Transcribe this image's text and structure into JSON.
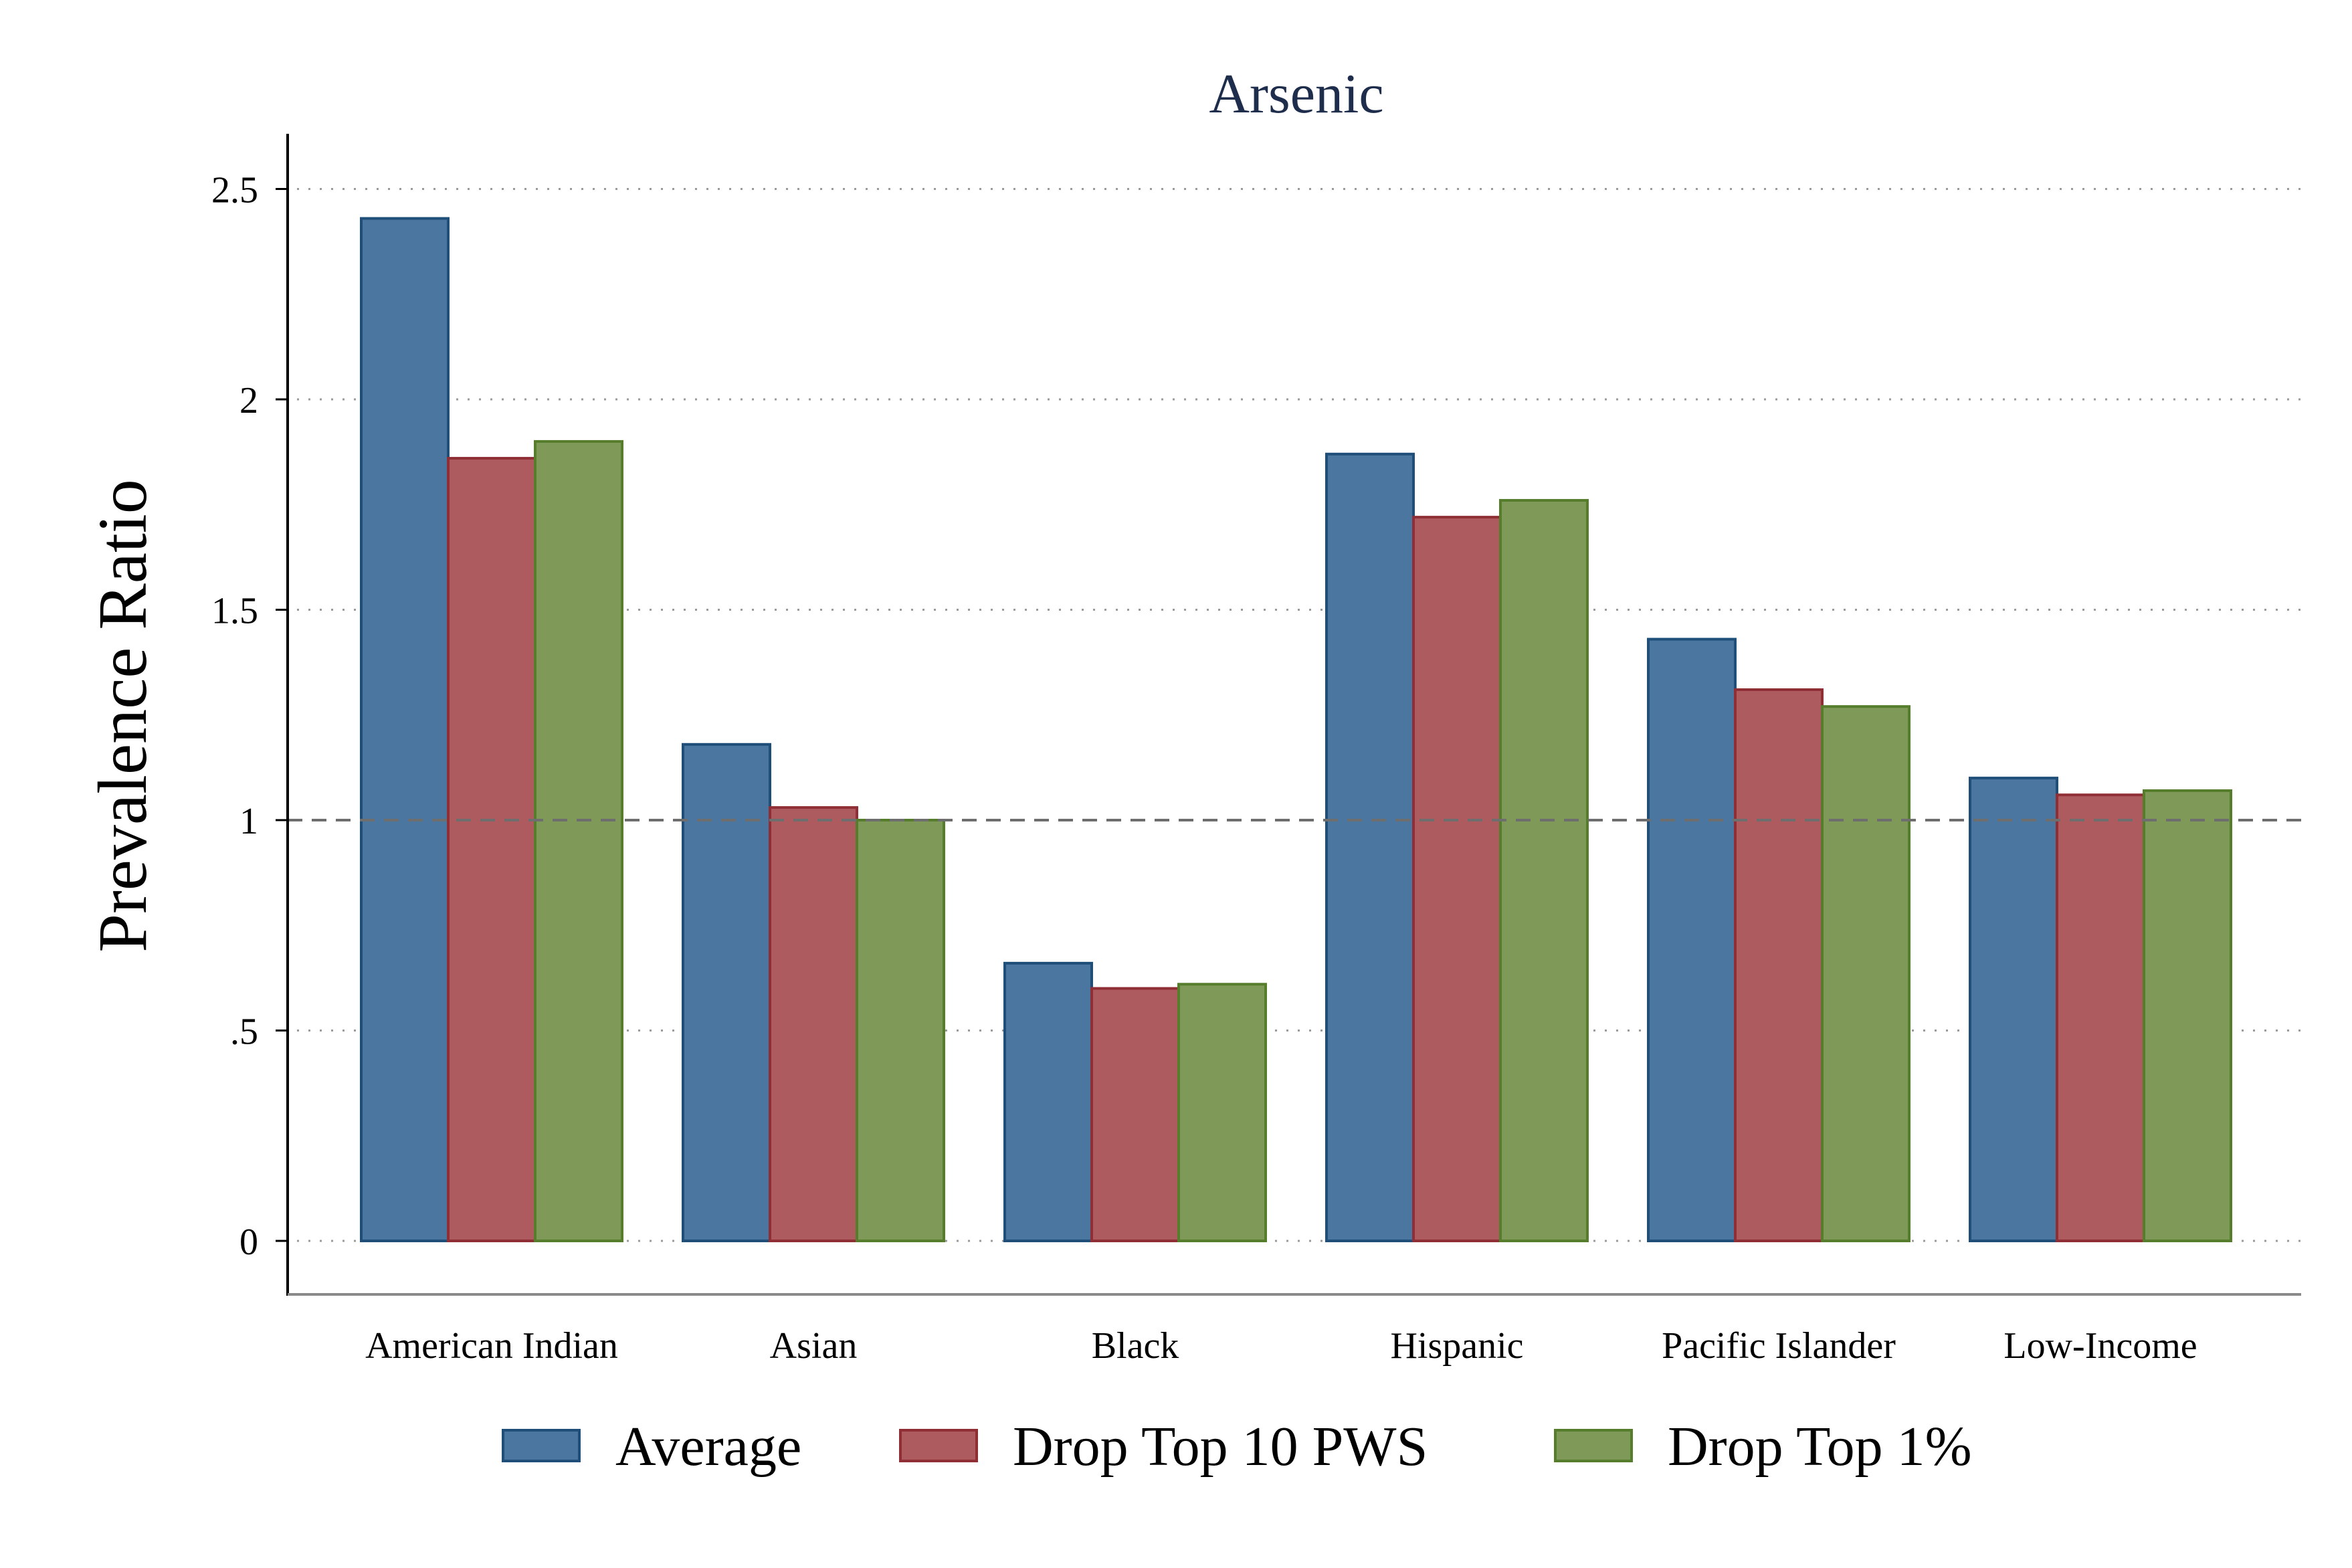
{
  "chart_data": {
    "type": "bar",
    "title": "Arsenic",
    "xlabel": "",
    "ylabel": "Prevalence Ratio",
    "ylim": [
      0,
      2.6
    ],
    "yticks": [
      {
        "value": 0,
        "label": "0"
      },
      {
        "value": 0.5,
        "label": ".5"
      },
      {
        "value": 1,
        "label": "1"
      },
      {
        "value": 1.5,
        "label": "1.5"
      },
      {
        "value": 2,
        "label": "2"
      },
      {
        "value": 2.5,
        "label": "2.5"
      }
    ],
    "reference_line": 1,
    "grid": true,
    "legend_position": "bottom",
    "categories": [
      "American Indian",
      "Asian",
      "Black",
      "Hispanic",
      "Pacific Islander",
      "Low-Income"
    ],
    "series": [
      {
        "name": "Average",
        "color": "#4a76a0",
        "stroke": "#1f4e79",
        "values": [
          2.43,
          1.18,
          0.66,
          1.87,
          1.43,
          1.1
        ]
      },
      {
        "name": "Drop Top 10 PWS",
        "color": "#ae5b5f",
        "stroke": "#8f2f35",
        "values": [
          1.86,
          1.03,
          0.6,
          1.72,
          1.31,
          1.06
        ]
      },
      {
        "name": "Drop Top 1%",
        "color": "#7f9a58",
        "stroke": "#557d2c",
        "values": [
          1.9,
          1.0,
          0.61,
          1.76,
          1.27,
          1.07
        ]
      }
    ]
  }
}
